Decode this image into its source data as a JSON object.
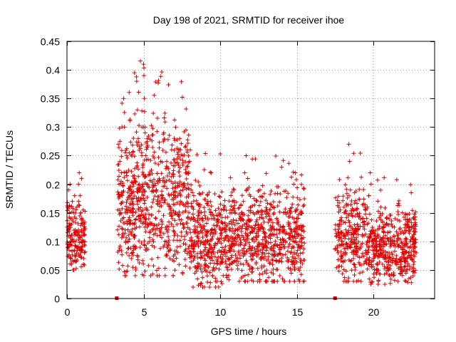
{
  "chart_data": {
    "type": "scatter",
    "title": "Day 198 of 2021, SRMTID for receiver ihoe",
    "xlabel": "GPS time / hours",
    "ylabel": "SRMTID / TECUs",
    "xlim": [
      0,
      24
    ],
    "ylim": [
      0,
      0.45
    ],
    "xticks": [
      0,
      5,
      10,
      15,
      20
    ],
    "xtick_labels": [
      "0",
      "5",
      "10",
      "15",
      "20"
    ],
    "yticks": [
      0,
      0.05,
      0.1,
      0.15,
      0.2,
      0.25,
      0.3,
      0.35,
      0.4,
      0.45
    ],
    "ytick_labels": [
      "0",
      "0.05",
      "0.1",
      "0.15",
      "0.2",
      "0.25",
      "0.3",
      "0.35",
      "0.4",
      "0.45"
    ],
    "grid": true,
    "marker": "+",
    "color": "#e00000",
    "data_gap_markers": [
      3.25,
      17.5
    ],
    "segments": [
      {
        "x_start": 0.0,
        "x_end": 1.2,
        "y_min": 0.05,
        "y_max": 0.22,
        "count": 150
      },
      {
        "x_start": 3.3,
        "x_end": 8.0,
        "y_min": 0.04,
        "y_max": 0.42,
        "count": 700
      },
      {
        "x_start": 8.0,
        "x_end": 10.5,
        "y_min": 0.02,
        "y_max": 0.26,
        "count": 350
      },
      {
        "x_start": 10.5,
        "x_end": 15.5,
        "y_min": 0.03,
        "y_max": 0.25,
        "count": 650
      },
      {
        "x_start": 17.5,
        "x_end": 19.5,
        "y_min": 0.03,
        "y_max": 0.27,
        "count": 250
      },
      {
        "x_start": 19.5,
        "x_end": 22.8,
        "y_min": 0.025,
        "y_max": 0.22,
        "count": 450
      }
    ],
    "points": [
      [
        0.05,
        0.16
      ],
      [
        0.08,
        0.12
      ],
      [
        0.1,
        0.19
      ],
      [
        0.12,
        0.09
      ],
      [
        0.15,
        0.15
      ],
      [
        0.18,
        0.11
      ],
      [
        0.2,
        0.2
      ],
      [
        0.22,
        0.14
      ],
      [
        0.25,
        0.07
      ],
      [
        0.3,
        0.13
      ],
      [
        0.35,
        0.17
      ],
      [
        0.4,
        0.1
      ],
      [
        0.45,
        0.15
      ],
      [
        0.5,
        0.18
      ],
      [
        0.55,
        0.12
      ],
      [
        0.6,
        0.14
      ],
      [
        0.65,
        0.16
      ],
      [
        0.7,
        0.11
      ],
      [
        0.75,
        0.2
      ],
      [
        0.8,
        0.22
      ],
      [
        0.85,
        0.18
      ],
      [
        0.9,
        0.15
      ],
      [
        0.95,
        0.21
      ],
      [
        1.0,
        0.1
      ],
      [
        1.05,
        0.13
      ],
      [
        1.1,
        0.07
      ],
      [
        1.15,
        0.12
      ],
      [
        0.3,
        0.06
      ],
      [
        0.6,
        0.09
      ],
      [
        0.9,
        0.08
      ],
      [
        3.35,
        0.27
      ],
      [
        3.4,
        0.2
      ],
      [
        3.45,
        0.24
      ],
      [
        3.5,
        0.15
      ],
      [
        3.55,
        0.22
      ],
      [
        3.6,
        0.18
      ],
      [
        3.7,
        0.35
      ],
      [
        3.75,
        0.3
      ],
      [
        3.8,
        0.12
      ],
      [
        3.9,
        0.08
      ],
      [
        4.0,
        0.1
      ],
      [
        4.1,
        0.13
      ],
      [
        4.2,
        0.07
      ],
      [
        4.3,
        0.15
      ],
      [
        4.4,
        0.11
      ],
      [
        4.5,
        0.09
      ],
      [
        4.55,
        0.38
      ],
      [
        4.6,
        0.33
      ],
      [
        4.65,
        0.28
      ],
      [
        4.7,
        0.19
      ],
      [
        4.8,
        0.14
      ],
      [
        4.9,
        0.3
      ],
      [
        5.0,
        0.41
      ],
      [
        5.02,
        0.39
      ],
      [
        5.05,
        0.35
      ],
      [
        5.1,
        0.29
      ],
      [
        5.15,
        0.25
      ],
      [
        5.2,
        0.2
      ],
      [
        5.3,
        0.13
      ],
      [
        5.4,
        0.1
      ],
      [
        5.5,
        0.16
      ],
      [
        5.6,
        0.12
      ],
      [
        5.7,
        0.09
      ],
      [
        5.8,
        0.14
      ],
      [
        5.9,
        0.11
      ],
      [
        6.0,
        0.13
      ],
      [
        6.2,
        0.18
      ],
      [
        6.4,
        0.1
      ],
      [
        6.6,
        0.12
      ],
      [
        6.8,
        0.15
      ],
      [
        7.0,
        0.11
      ],
      [
        7.2,
        0.09
      ],
      [
        7.4,
        0.17
      ],
      [
        7.6,
        0.2
      ],
      [
        7.8,
        0.22
      ],
      [
        7.9,
        0.14
      ],
      [
        8.0,
        0.24
      ],
      [
        8.05,
        0.26
      ],
      [
        8.1,
        0.19
      ],
      [
        8.2,
        0.16
      ],
      [
        8.4,
        0.12
      ],
      [
        8.6,
        0.1
      ],
      [
        8.8,
        0.08
      ],
      [
        9.0,
        0.06
      ],
      [
        9.2,
        0.1
      ],
      [
        9.4,
        0.07
      ],
      [
        9.5,
        0.04
      ],
      [
        9.6,
        0.05
      ],
      [
        9.8,
        0.03
      ],
      [
        10.0,
        0.06
      ],
      [
        10.2,
        0.04
      ],
      [
        10.3,
        0.08
      ],
      [
        10.5,
        0.05
      ],
      [
        10.7,
        0.09
      ],
      [
        10.8,
        0.17
      ],
      [
        10.9,
        0.19
      ],
      [
        11.0,
        0.12
      ],
      [
        11.2,
        0.08
      ],
      [
        11.4,
        0.14
      ],
      [
        11.6,
        0.22
      ],
      [
        11.7,
        0.25
      ],
      [
        11.8,
        0.21
      ],
      [
        12.0,
        0.16
      ],
      [
        12.2,
        0.12
      ],
      [
        12.4,
        0.15
      ],
      [
        12.6,
        0.19
      ],
      [
        12.8,
        0.14
      ],
      [
        13.0,
        0.09
      ],
      [
        13.2,
        0.12
      ],
      [
        13.4,
        0.16
      ],
      [
        13.6,
        0.1
      ],
      [
        13.8,
        0.13
      ],
      [
        14.0,
        0.09
      ],
      [
        14.2,
        0.12
      ],
      [
        14.4,
        0.15
      ],
      [
        14.6,
        0.11
      ],
      [
        14.8,
        0.2
      ],
      [
        14.9,
        0.22
      ],
      [
        15.0,
        0.14
      ],
      [
        15.2,
        0.1
      ],
      [
        15.3,
        0.12
      ],
      [
        15.4,
        0.08
      ],
      [
        17.6,
        0.11
      ],
      [
        17.7,
        0.08
      ],
      [
        17.8,
        0.13
      ],
      [
        17.9,
        0.07
      ],
      [
        18.0,
        0.1
      ],
      [
        18.1,
        0.15
      ],
      [
        18.2,
        0.12
      ],
      [
        18.3,
        0.09
      ],
      [
        18.4,
        0.27
      ],
      [
        18.45,
        0.24
      ],
      [
        18.5,
        0.19
      ],
      [
        18.6,
        0.1
      ],
      [
        18.7,
        0.07
      ],
      [
        18.8,
        0.05
      ],
      [
        18.9,
        0.08
      ],
      [
        19.0,
        0.12
      ],
      [
        19.1,
        0.06
      ],
      [
        19.2,
        0.09
      ],
      [
        19.3,
        0.14
      ],
      [
        19.4,
        0.11
      ],
      [
        19.5,
        0.08
      ],
      [
        19.6,
        0.13
      ],
      [
        19.7,
        0.18
      ],
      [
        19.8,
        0.22
      ],
      [
        19.85,
        0.2
      ],
      [
        19.9,
        0.1
      ],
      [
        20.0,
        0.07
      ],
      [
        20.2,
        0.05
      ],
      [
        20.4,
        0.09
      ],
      [
        20.6,
        0.06
      ],
      [
        20.8,
        0.11
      ],
      [
        21.0,
        0.05
      ],
      [
        21.2,
        0.08
      ],
      [
        21.3,
        0.04
      ],
      [
        21.5,
        0.07
      ],
      [
        21.6,
        0.03
      ],
      [
        21.8,
        0.06
      ],
      [
        21.9,
        0.15
      ],
      [
        22.0,
        0.09
      ],
      [
        22.2,
        0.05
      ],
      [
        22.3,
        0.08
      ],
      [
        22.4,
        0.12
      ],
      [
        22.5,
        0.07
      ],
      [
        22.6,
        0.1
      ],
      [
        22.7,
        0.13
      ],
      [
        22.8,
        0.08
      ]
    ]
  }
}
